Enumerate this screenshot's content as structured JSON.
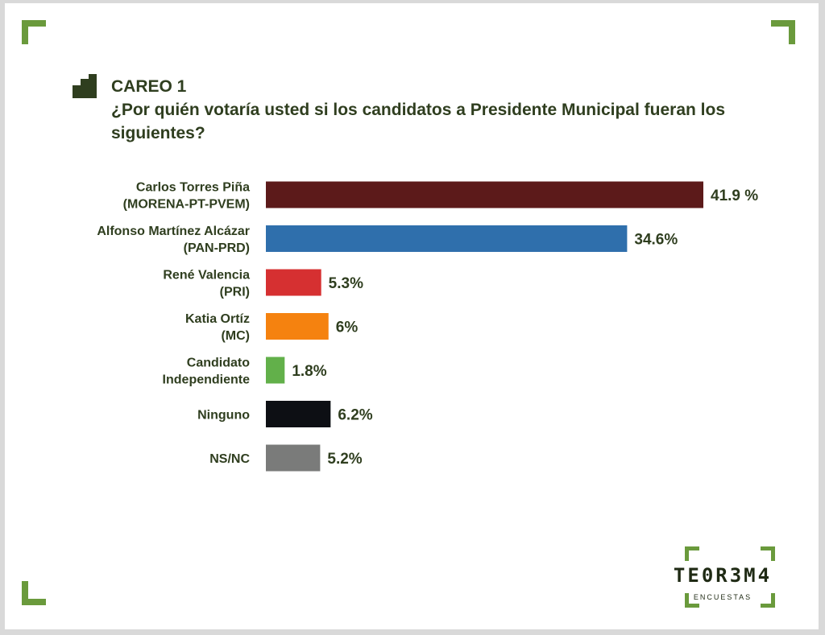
{
  "header": {
    "kicker": "CAREO 1",
    "question": "¿Por quién votaría usted si los candidatos a Presidente Municipal fueran los siguientes?"
  },
  "chart_data": {
    "type": "bar",
    "orientation": "horizontal",
    "categories": [
      [
        "Carlos Torres Piña",
        "(MORENA-PT-PVEM)"
      ],
      [
        "Alfonso Martínez Alcázar",
        "(PAN-PRD)"
      ],
      [
        "René Valencia",
        "(PRI)"
      ],
      [
        "Katia Ortíz",
        "(MC)"
      ],
      [
        "Candidato",
        "Independiente"
      ],
      [
        "Ninguno"
      ],
      [
        "NS/NC"
      ]
    ],
    "values": [
      41.9,
      34.6,
      5.3,
      6,
      1.8,
      6.2,
      5.2
    ],
    "value_labels": [
      "41.9 %",
      "34.6%",
      "5.3%",
      "6%",
      "1.8%",
      "6.2%",
      "5.2%"
    ],
    "colors": [
      "#5c1a1a",
      "#2f6fac",
      "#d63031",
      "#f5820f",
      "#62b04a",
      "#0d0f14",
      "#7a7b7a"
    ],
    "xlim": [
      0,
      41.9
    ],
    "grid": false,
    "legend": "none"
  },
  "brand": {
    "name": "TE0R3M4",
    "tagline": "ENCUESTAS",
    "accent": "#6a9a3c"
  }
}
